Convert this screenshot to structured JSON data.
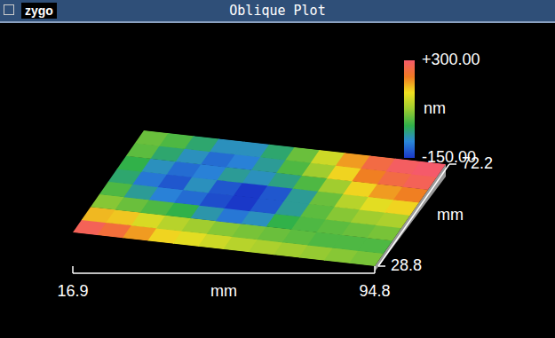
{
  "chart_data": {
    "type": "heatmap",
    "logo": "zygo",
    "title": "Oblique Plot",
    "x_label": "mm",
    "y_label": "mm",
    "xlim": [
      16.9,
      94.8
    ],
    "xticks": [
      16.9,
      94.8
    ],
    "ylim": [
      28.8,
      72.2
    ],
    "yticks": [
      28.8,
      72.2
    ],
    "tick_labels": true,
    "x": [
      20.1,
      26.6,
      33.1,
      39.6,
      46.1,
      52.6,
      59.1,
      65.6,
      72.1,
      78.6,
      85.1,
      91.6
    ],
    "y": [
      31.5,
      36.9,
      42.4,
      47.8,
      53.2,
      58.6,
      64.1,
      69.5
    ],
    "z": [
      [
        280,
        250,
        200,
        160,
        140,
        120,
        100,
        90,
        80,
        70,
        60,
        50
      ],
      [
        180,
        170,
        130,
        100,
        80,
        60,
        50,
        40,
        30,
        20,
        20,
        20
      ],
      [
        60,
        40,
        20,
        0,
        -50,
        -90,
        -60,
        0,
        20,
        30,
        40,
        50
      ],
      [
        20,
        -40,
        -80,
        -100,
        -130,
        -150,
        -120,
        -40,
        30,
        60,
        80,
        90
      ],
      [
        -20,
        -90,
        -120,
        -60,
        -120,
        -150,
        -120,
        -40,
        40,
        100,
        140,
        160
      ],
      [
        0,
        -60,
        -100,
        -80,
        -40,
        -60,
        -30,
        20,
        80,
        160,
        200,
        220
      ],
      [
        30,
        -20,
        -60,
        -100,
        -80,
        -40,
        20,
        80,
        160,
        220,
        260,
        280
      ],
      [
        40,
        20,
        -20,
        -60,
        -60,
        -20,
        40,
        120,
        200,
        260,
        290,
        300
      ]
    ],
    "colorbar": {
      "range": [
        -150,
        300
      ],
      "ticks": [
        {
          "value": 300,
          "label": "+300.00"
        },
        {
          "value": -150,
          "label": "-150.00"
        }
      ],
      "label": "nm"
    }
  }
}
